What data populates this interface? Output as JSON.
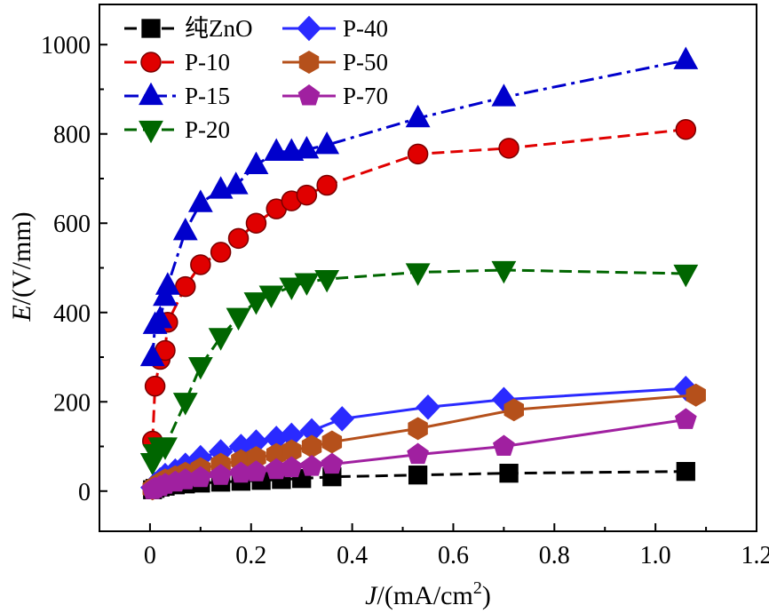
{
  "chart_data": {
    "type": "line",
    "title": "",
    "xlabel": {
      "var": "J",
      "rest": "/(mA/cm",
      "sup": "2",
      "end": ")"
    },
    "ylabel": {
      "var": "E",
      "rest": "/(V/mm)"
    },
    "xlim": [
      -0.1,
      1.2
    ],
    "ylim": [
      -90,
      1090
    ],
    "xticks": [
      0,
      0.2,
      0.4,
      0.6,
      0.8,
      1.0,
      1.2
    ],
    "xtick_labels": [
      "0",
      "0.2",
      "0.4",
      "0.6",
      "0.8",
      "1.0",
      "1.2"
    ],
    "yticks": [
      0,
      200,
      400,
      600,
      800,
      1000
    ],
    "ytick_labels": [
      "0",
      "200",
      "400",
      "600",
      "800",
      "1000"
    ],
    "grid": false,
    "legend_position": "top-left",
    "series": [
      {
        "name": "纯ZnO",
        "color": "#000000",
        "marker": "square",
        "line": "dashed",
        "x": [
          0.005,
          0.01,
          0.02,
          0.03,
          0.05,
          0.07,
          0.1,
          0.14,
          0.18,
          0.22,
          0.26,
          0.3,
          0.36,
          0.53,
          0.71,
          1.06
        ],
        "y": [
          3,
          6,
          9,
          11,
          14,
          16,
          18,
          20,
          22,
          24,
          26,
          28,
          32,
          36,
          40,
          44
        ]
      },
      {
        "name": "P-10",
        "color": "#e00000",
        "marker": "circle",
        "line": "dashed",
        "x": [
          0.005,
          0.01,
          0.02,
          0.03,
          0.035,
          0.07,
          0.1,
          0.14,
          0.175,
          0.21,
          0.25,
          0.28,
          0.31,
          0.35,
          0.53,
          0.71,
          1.06
        ],
        "y": [
          112,
          235,
          295,
          315,
          378,
          458,
          507,
          535,
          566,
          600,
          632,
          650,
          663,
          685,
          755,
          768,
          810
        ]
      },
      {
        "name": "P-15",
        "color": "#0000cc",
        "marker": "triangle-up",
        "line": "dashdot",
        "x": [
          0.005,
          0.01,
          0.02,
          0.03,
          0.035,
          0.07,
          0.1,
          0.14,
          0.17,
          0.21,
          0.25,
          0.28,
          0.31,
          0.35,
          0.53,
          0.7,
          1.06
        ],
        "y": [
          300,
          372,
          385,
          435,
          460,
          582,
          645,
          675,
          685,
          730,
          760,
          760,
          765,
          775,
          835,
          882,
          965
        ]
      },
      {
        "name": "P-20",
        "color": "#006600",
        "marker": "triangle-down",
        "line": "dashed",
        "x": [
          0.005,
          0.01,
          0.02,
          0.03,
          0.07,
          0.1,
          0.14,
          0.175,
          0.21,
          0.24,
          0.28,
          0.31,
          0.35,
          0.53,
          0.7,
          1.06
        ],
        "y": [
          65,
          85,
          100,
          100,
          200,
          280,
          345,
          390,
          425,
          440,
          458,
          468,
          475,
          490,
          495,
          487
        ]
      },
      {
        "name": "P-40",
        "color": "#2a2aff",
        "marker": "diamond",
        "line": "solid",
        "x": [
          0.005,
          0.01,
          0.02,
          0.03,
          0.05,
          0.07,
          0.1,
          0.14,
          0.18,
          0.21,
          0.25,
          0.28,
          0.32,
          0.38,
          0.55,
          0.7,
          1.06
        ],
        "y": [
          8,
          15,
          25,
          35,
          45,
          58,
          75,
          88,
          100,
          110,
          118,
          125,
          135,
          162,
          188,
          205,
          230
        ]
      },
      {
        "name": "P-50",
        "color": "#b5501b",
        "marker": "hexagon",
        "line": "solid",
        "x": [
          0.005,
          0.01,
          0.02,
          0.03,
          0.05,
          0.07,
          0.1,
          0.14,
          0.18,
          0.21,
          0.25,
          0.28,
          0.32,
          0.36,
          0.53,
          0.72,
          1.08
        ],
        "y": [
          5,
          10,
          18,
          25,
          32,
          40,
          50,
          60,
          68,
          75,
          82,
          90,
          100,
          110,
          140,
          182,
          215
        ]
      },
      {
        "name": "P-70",
        "color": "#a020a0",
        "marker": "pentagon",
        "line": "solid",
        "x": [
          0.005,
          0.01,
          0.02,
          0.03,
          0.05,
          0.07,
          0.1,
          0.14,
          0.18,
          0.21,
          0.25,
          0.28,
          0.32,
          0.36,
          0.53,
          0.7,
          1.06
        ],
        "y": [
          3,
          6,
          10,
          15,
          20,
          25,
          30,
          35,
          40,
          43,
          48,
          52,
          55,
          60,
          82,
          100,
          160
        ]
      }
    ]
  }
}
